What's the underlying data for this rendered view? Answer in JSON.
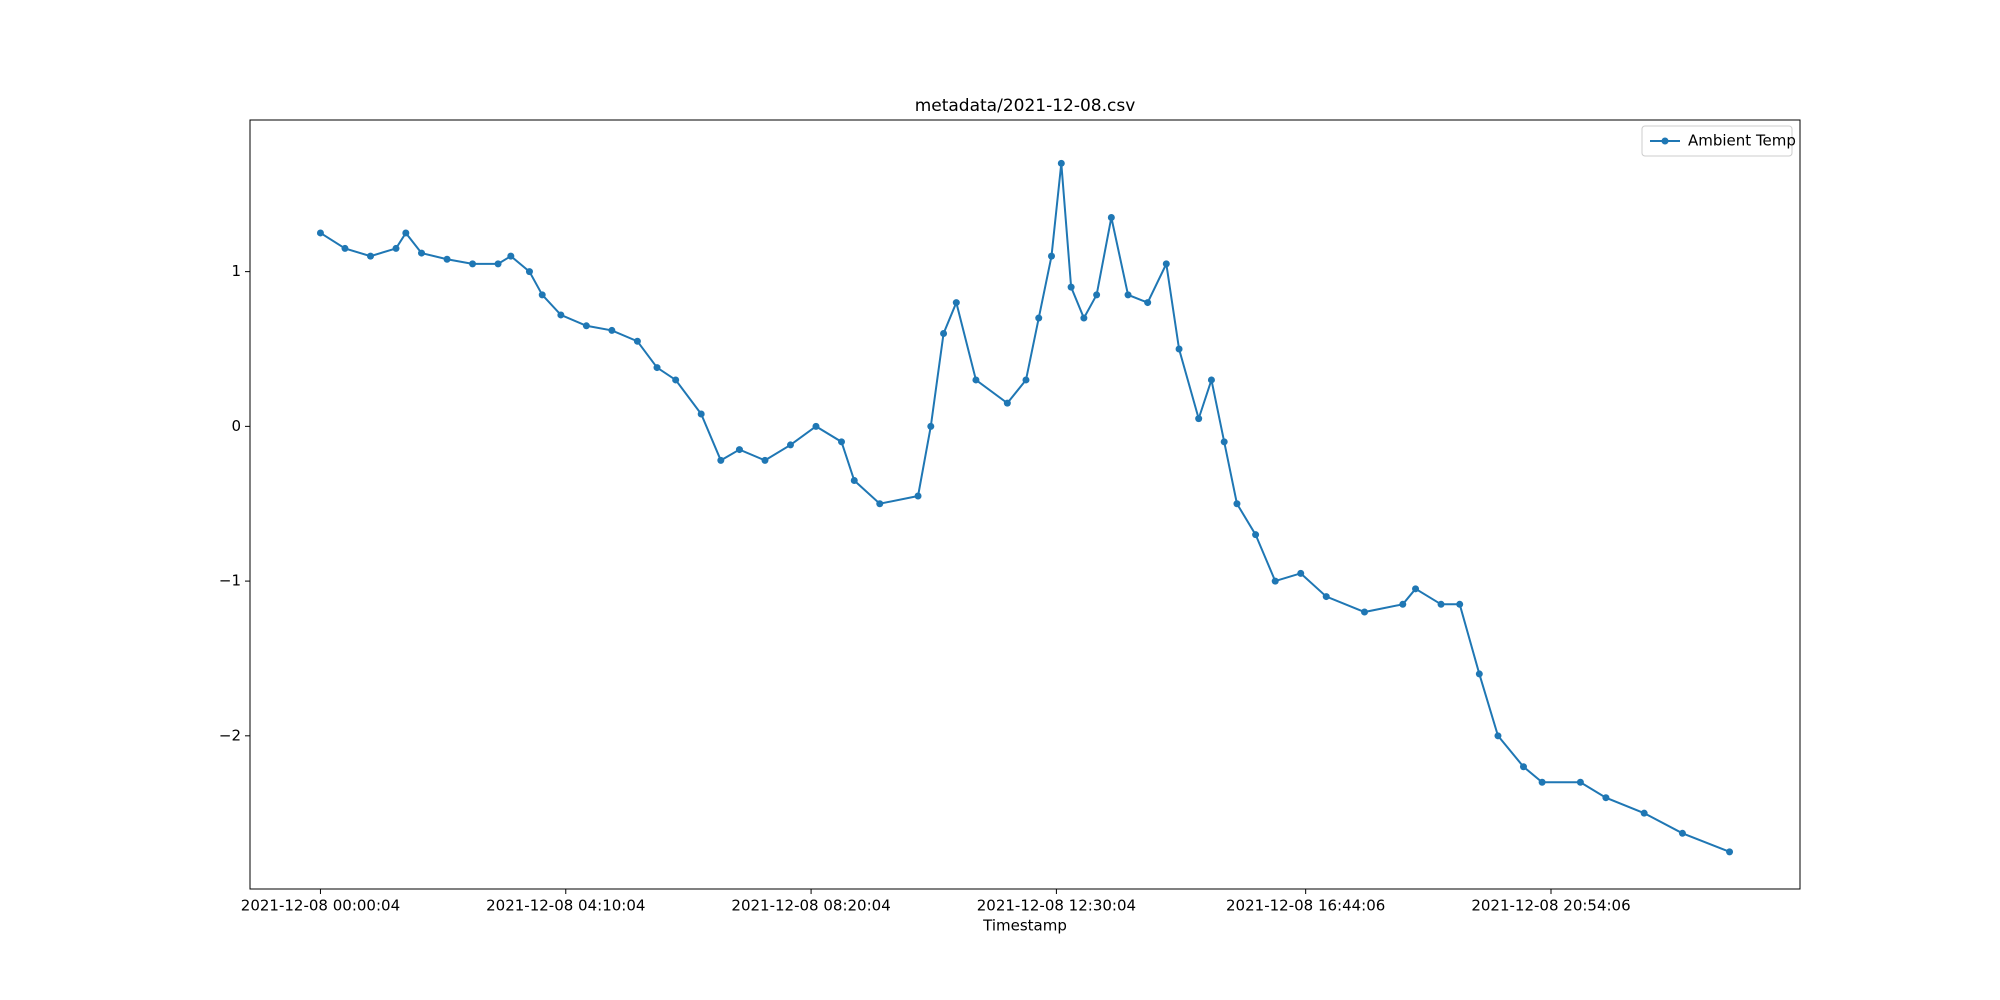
{
  "chart_data": {
    "type": "line",
    "title": "metadata/2021-12-08.csv",
    "xlabel": "Timestamp",
    "x": [
      "2021-12-08 00:00:04",
      "2021-12-08 00:25:04",
      "2021-12-08 00:51:04",
      "2021-12-08 01:17:04",
      "2021-12-08 01:27:04",
      "2021-12-08 01:43:04",
      "2021-12-08 02:09:04",
      "2021-12-08 02:35:04",
      "2021-12-08 03:01:04",
      "2021-12-08 03:14:04",
      "2021-12-08 03:33:04",
      "2021-12-08 03:46:04",
      "2021-12-08 04:05:04",
      "2021-12-08 04:31:04",
      "2021-12-08 04:57:04",
      "2021-12-08 05:23:04",
      "2021-12-08 05:43:04",
      "2021-12-08 06:02:04",
      "2021-12-08 06:28:04",
      "2021-12-08 06:48:04",
      "2021-12-08 07:07:04",
      "2021-12-08 07:33:04",
      "2021-12-08 07:59:04",
      "2021-12-08 08:25:04",
      "2021-12-08 08:51:04",
      "2021-12-08 09:04:04",
      "2021-12-08 09:30:04",
      "2021-12-08 10:09:04",
      "2021-12-08 10:22:04",
      "2021-12-08 10:35:04",
      "2021-12-08 10:48:04",
      "2021-12-08 11:08:04",
      "2021-12-08 11:40:04",
      "2021-12-08 11:59:04",
      "2021-12-08 12:12:04",
      "2021-12-08 12:25:04",
      "2021-12-08 12:35:04",
      "2021-12-08 12:45:04",
      "2021-12-08 12:58:04",
      "2021-12-08 13:11:04",
      "2021-12-08 13:26:04",
      "2021-12-08 13:43:04",
      "2021-12-08 14:03:04",
      "2021-12-08 14:22:04",
      "2021-12-08 14:35:04",
      "2021-12-08 14:55:04",
      "2021-12-08 15:08:04",
      "2021-12-08 15:21:04",
      "2021-12-08 15:34:04",
      "2021-12-08 15:53:04",
      "2021-12-08 16:13:04",
      "2021-12-08 16:39:04",
      "2021-12-08 17:05:04",
      "2021-12-08 17:44:04",
      "2021-12-08 18:23:04",
      "2021-12-08 18:36:04",
      "2021-12-08 19:02:04",
      "2021-12-08 19:21:04",
      "2021-12-08 19:41:04",
      "2021-12-08 20:00:04",
      "2021-12-08 20:26:04",
      "2021-12-08 20:45:04",
      "2021-12-08 21:24:04",
      "2021-12-08 21:50:04",
      "2021-12-08 22:29:04",
      "2021-12-08 23:08:04",
      "2021-12-08 23:56:04"
    ],
    "series": [
      {
        "name": "Ambient Temp",
        "color": "#1f77b4",
        "marker": "o",
        "values": [
          1.25,
          1.15,
          1.1,
          1.15,
          1.25,
          1.12,
          1.08,
          1.05,
          1.05,
          1.1,
          1.0,
          0.85,
          0.72,
          0.65,
          0.62,
          0.55,
          0.38,
          0.3,
          0.08,
          -0.22,
          -0.15,
          -0.22,
          -0.12,
          0.0,
          -0.1,
          -0.35,
          -0.5,
          -0.45,
          0.0,
          0.6,
          0.8,
          0.3,
          0.15,
          0.3,
          0.7,
          1.1,
          1.7,
          0.9,
          0.7,
          0.85,
          1.35,
          0.85,
          0.8,
          1.05,
          0.5,
          0.05,
          0.3,
          -0.1,
          -0.5,
          -0.7,
          -1.0,
          -0.95,
          -1.1,
          -1.2,
          -1.15,
          -1.05,
          -1.15,
          -1.15,
          -1.6,
          -2.0,
          -2.2,
          -2.3,
          -2.3,
          -2.4,
          -2.5,
          -2.63,
          -2.75
        ]
      }
    ],
    "xticks": [
      "2021-12-08 00:00:04",
      "2021-12-08 04:10:04",
      "2021-12-08 08:20:04",
      "2021-12-08 12:30:04",
      "2021-12-08 16:44:06",
      "2021-12-08 20:54:06"
    ],
    "ylim": [
      -2.99,
      1.98
    ],
    "yticks": [
      {
        "value": -2,
        "label": "−2"
      },
      {
        "value": -1,
        "label": "−1"
      },
      0,
      1
    ],
    "legend": "upper right",
    "grid": false
  }
}
